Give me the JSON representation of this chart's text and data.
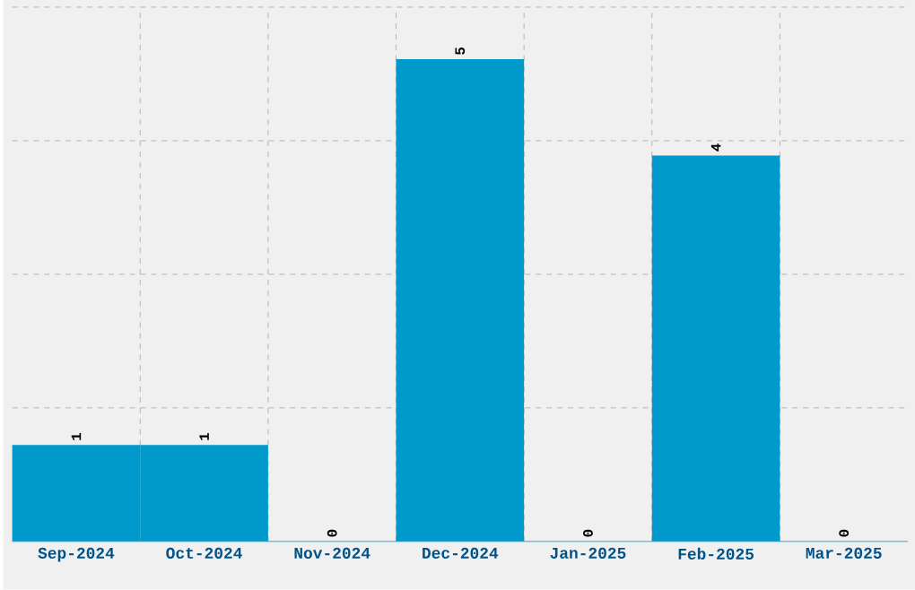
{
  "chart_data": {
    "type": "bar",
    "categories": [
      "Sep-2024",
      "Oct-2024",
      "Nov-2024",
      "Dec-2024",
      "Jan-2025",
      "Feb-2025",
      "Mar-2025"
    ],
    "values": [
      1,
      1,
      0,
      5,
      0,
      4,
      0
    ],
    "color": "#0099cc",
    "ylim": [
      0,
      5.54
    ],
    "tick_labels": "x",
    "grid": true,
    "data_labels": true
  }
}
